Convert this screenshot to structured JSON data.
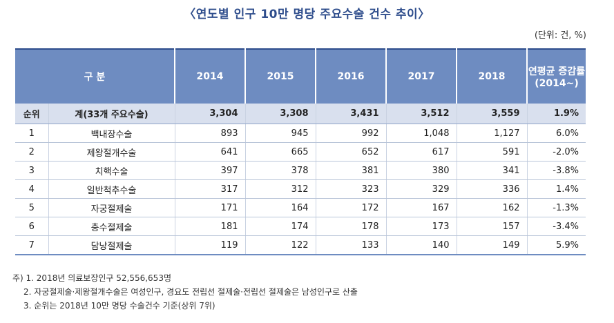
{
  "title": "〈연도별 인구 10만 명당 주요수술 건수 추이〉",
  "unit": "(단위: 건, %)",
  "table": {
    "headers": [
      "구 분",
      "2014",
      "2015",
      "2016",
      "2017",
      "2018",
      "연평균 증감률",
      "(2014~)"
    ],
    "total": [
      "순위",
      "계(33개 주요수술)",
      "3,304",
      "3,308",
      "3,431",
      "3,512",
      "3,559",
      "1.9%"
    ],
    "rows": [
      [
        "1",
        "백내장수술",
        "893",
        "945",
        "992",
        "1,048",
        "1,127",
        "6.0%"
      ],
      [
        "2",
        "제왕절개수술",
        "641",
        "665",
        "652",
        "617",
        "591",
        "-2.0%"
      ],
      [
        "3",
        "치핵수술",
        "397",
        "378",
        "381",
        "380",
        "341",
        "-3.8%"
      ],
      [
        "4",
        "일반척추수술",
        "317",
        "312",
        "323",
        "329",
        "336",
        "1.4%"
      ],
      [
        "5",
        "자궁절제술",
        "171",
        "164",
        "172",
        "167",
        "162",
        "-1.3%"
      ],
      [
        "6",
        "충수절제술",
        "181",
        "174",
        "178",
        "173",
        "157",
        "-3.4%"
      ],
      [
        "7",
        "담낭절제술",
        "119",
        "122",
        "133",
        "140",
        "149",
        "5.9%"
      ]
    ]
  },
  "notes": {
    "n1": "주) 1. 2018년 의료보장인구 52,556,653명",
    "n2": "2. 자궁절제술·제왕절개수술은 여성인구, 경요도 전립선 절제술·전립선 절제술은 남성인구로 산출",
    "n3": "3. 순위는 2018년 10만 명당 수술건수 기준(상위 7위)"
  }
}
